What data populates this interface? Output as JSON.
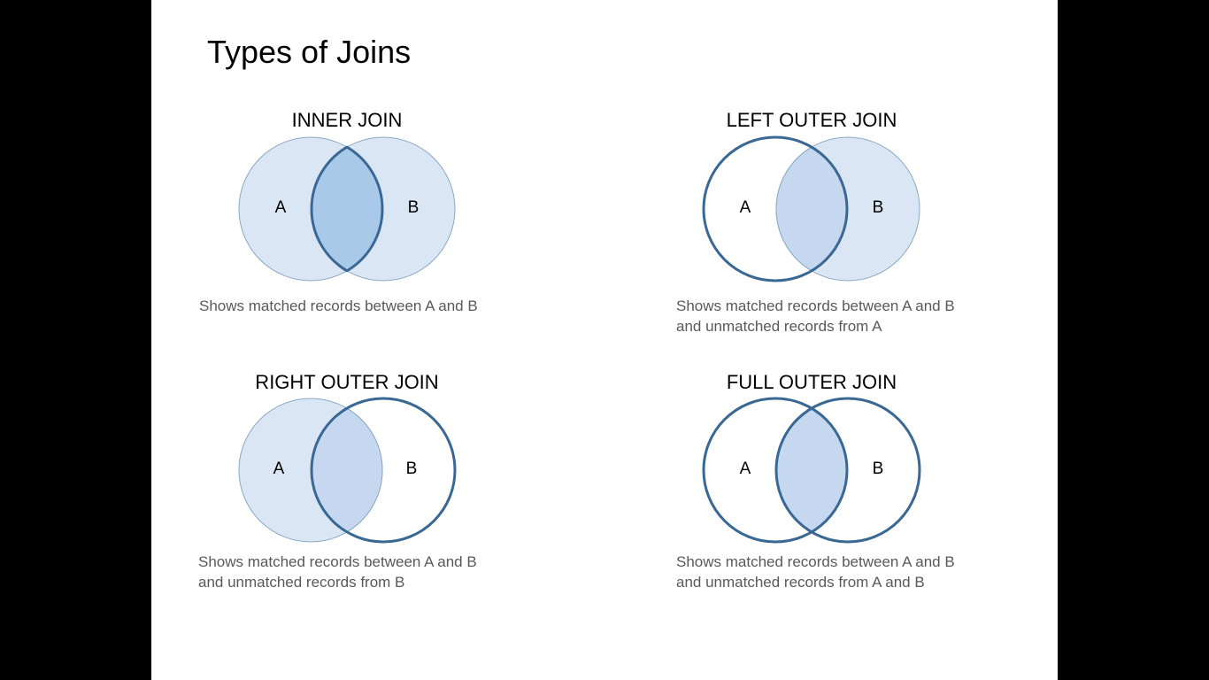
{
  "slide": {
    "title": "Types of Joins"
  },
  "colors": {
    "fill": "#dbe6f4",
    "fill_overlap": "#c6d8ef",
    "fill_highlight": "#a9c9e8",
    "stroke_light": "#8aa8c4",
    "stroke_bold": "#3a6894",
    "background": "#000000",
    "slide_background": "#ffffff"
  },
  "joins": [
    {
      "title": "INNER JOIN",
      "label_a": "A",
      "label_b": "B",
      "highlight": "intersection",
      "caption": [
        "Shows matched records between A and B"
      ]
    },
    {
      "title": "LEFT OUTER JOIN",
      "label_a": "A",
      "label_b": "B",
      "highlight": "left",
      "caption": [
        "Shows matched records between A and B",
        "and unmatched records from A"
      ]
    },
    {
      "title": "RIGHT OUTER JOIN",
      "label_a": "A",
      "label_b": "B",
      "highlight": "right",
      "caption": [
        "Shows matched records between A and B",
        "and unmatched records from B"
      ]
    },
    {
      "title": "FULL OUTER JOIN",
      "label_a": "A",
      "label_b": "B",
      "highlight": "full",
      "caption": [
        "Shows matched records between A and B",
        "and unmatched records from A and B"
      ]
    }
  ]
}
